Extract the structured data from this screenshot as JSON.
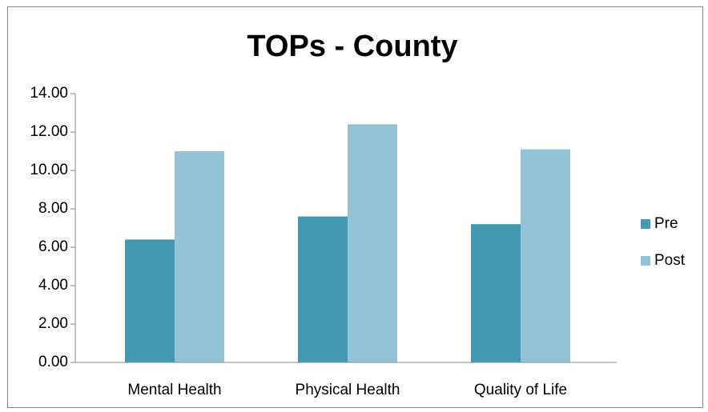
{
  "chart_data": {
    "type": "bar",
    "title": "TOPs - County",
    "categories": [
      "Mental Health",
      "Physical Health",
      "Quality of Life"
    ],
    "series": [
      {
        "name": "Pre",
        "color": "#4299b0",
        "values": [
          6.4,
          7.6,
          7.2
        ]
      },
      {
        "name": "Post",
        "color": "#93c3d5",
        "values": [
          11.0,
          12.4,
          11.1
        ]
      }
    ],
    "ylim": [
      0,
      14
    ],
    "yticks": [
      {
        "value": 0,
        "label": "0.00"
      },
      {
        "value": 2,
        "label": "2.00"
      },
      {
        "value": 4,
        "label": "4.00"
      },
      {
        "value": 6,
        "label": "6.00"
      },
      {
        "value": 8,
        "label": "8.00"
      },
      {
        "value": 10,
        "label": "10.00"
      },
      {
        "value": 12,
        "label": "12.00"
      },
      {
        "value": 14,
        "label": "14.00"
      }
    ],
    "legend": "right",
    "grid": false
  }
}
